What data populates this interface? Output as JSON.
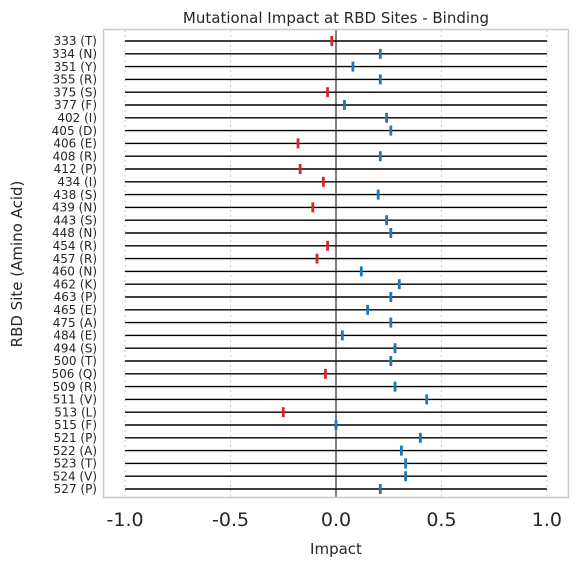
{
  "colors": {
    "positive": "#1f77b4",
    "negative": "#d62728"
  },
  "chart_data": {
    "type": "scatter",
    "title": "Mutational Impact at RBD Sites - Binding",
    "xlabel": "Impact",
    "ylabel": "RBD Site (Amino Acid)",
    "xlim": [
      -1.1,
      1.1
    ],
    "xticks": [
      "-1.0",
      "-0.5",
      "0.0",
      "0.5",
      "1.0"
    ],
    "xtick_values": [
      -1.0,
      -0.5,
      0.0,
      0.5,
      1.0
    ],
    "row_range": [
      -1.0,
      1.0
    ],
    "grid": true,
    "categories": [
      "333 (T)",
      "334 (N)",
      "351 (Y)",
      "355 (R)",
      "375 (S)",
      "377 (F)",
      "402 (I)",
      "405 (D)",
      "406 (E)",
      "408 (R)",
      "412 (P)",
      "434 (I)",
      "438 (S)",
      "439 (N)",
      "443 (S)",
      "448 (N)",
      "454 (R)",
      "457 (R)",
      "460 (N)",
      "462 (K)",
      "463 (P)",
      "465 (E)",
      "475 (A)",
      "484 (E)",
      "494 (S)",
      "500 (T)",
      "506 (Q)",
      "509 (R)",
      "511 (V)",
      "513 (L)",
      "515 (F)",
      "521 (P)",
      "522 (A)",
      "523 (T)",
      "524 (V)",
      "527 (P)"
    ],
    "values": [
      -0.02,
      0.21,
      0.08,
      0.21,
      -0.04,
      0.04,
      0.24,
      0.26,
      -0.18,
      0.21,
      -0.17,
      -0.06,
      0.2,
      -0.11,
      0.24,
      0.26,
      -0.04,
      -0.09,
      0.12,
      0.3,
      0.26,
      0.15,
      0.26,
      0.03,
      0.28,
      0.26,
      -0.05,
      0.28,
      0.43,
      -0.25,
      0.0,
      0.4,
      0.31,
      0.33,
      0.33,
      0.21
    ]
  }
}
